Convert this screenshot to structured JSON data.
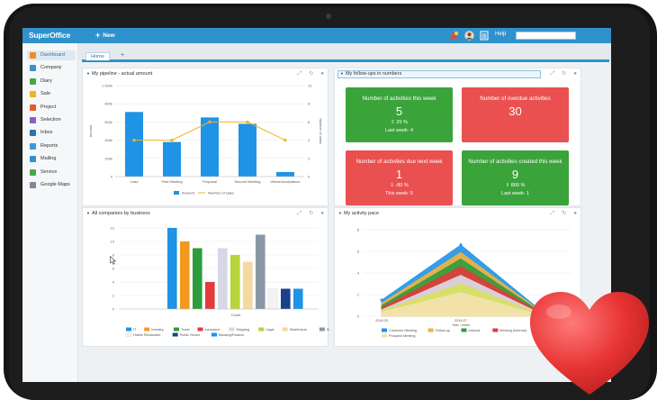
{
  "app": {
    "name": "SuperOffice",
    "new_label": "New",
    "help_label": "Help",
    "search_placeholder": ""
  },
  "sidebar": {
    "items": [
      {
        "label": "Dashboard",
        "color": "#f08a24",
        "active": true
      },
      {
        "label": "Company",
        "color": "#3a8fd0"
      },
      {
        "label": "Diary",
        "color": "#45a845"
      },
      {
        "label": "Sale",
        "color": "#f0b323"
      },
      {
        "label": "Project",
        "color": "#e85a2a"
      },
      {
        "label": "Selection",
        "color": "#8a5fc2"
      },
      {
        "label": "Inbox",
        "color": "#2f72a8"
      },
      {
        "label": "Reports",
        "color": "#3c9ad6"
      },
      {
        "label": "Mailing",
        "color": "#2f92cc"
      },
      {
        "label": "Service",
        "color": "#4aa84a"
      },
      {
        "label": "Google Maps",
        "color": "#7b8a96"
      }
    ]
  },
  "tabs": {
    "home_label": "Home",
    "add_label": "+"
  },
  "panels": {
    "pipeline": {
      "title": "My pipeline - actual amount"
    },
    "followups": {
      "title": "My follow-ups in numbers"
    },
    "companies": {
      "title": "All companies by business"
    },
    "activity": {
      "title": "My activity pace"
    }
  },
  "tiles": [
    {
      "title": "Number of activities this week",
      "value": "5",
      "change": "⇧ 25 %",
      "last": "Last week: 4",
      "color": "#3aa33a"
    },
    {
      "title": "Number of overdue activities",
      "value": "30",
      "change": "",
      "last": "",
      "color": "#e9504f"
    },
    {
      "title": "Number of activities due next week",
      "value": "1",
      "change": "⇩ -80 %",
      "last": "This week: 5",
      "color": "#e9504f"
    },
    {
      "title": "Number of activities created this week",
      "value": "9",
      "change": "⇧ 800 %",
      "last": "Last week: 1",
      "color": "#3aa33a"
    }
  ],
  "chart_data": [
    {
      "type": "bar",
      "title": "My pipeline - actual amount",
      "categories": [
        "Lead",
        "First Meeting",
        "Proposal",
        "Second Meeting",
        "Verbal Acceptance"
      ],
      "ylabel": "Amount",
      "y2label": "Number of sales",
      "ylim": [
        0,
        1000000
      ],
      "y2lim": [
        0,
        10
      ],
      "yticks": [
        "0",
        "200k",
        "400k",
        "600k",
        "800k",
        "1 000k"
      ],
      "y2ticks": [
        "0",
        "2",
        "4",
        "6",
        "8",
        "10"
      ],
      "series": [
        {
          "name": "Amount",
          "values": [
            710000,
            380000,
            650000,
            580000,
            50000
          ],
          "color": "#1f93e6",
          "kind": "bar",
          "axis": "left"
        },
        {
          "name": "Number of sales",
          "values": [
            4,
            4,
            6,
            6,
            4
          ],
          "color": "#f0b323",
          "kind": "line",
          "axis": "right"
        }
      ],
      "legend": "bottom"
    },
    {
      "type": "bar",
      "title": "All companies by business",
      "xlabel": "Count",
      "ylim": [
        0,
        12
      ],
      "yticks": [
        "0",
        "2",
        "4",
        "6",
        "8",
        "10",
        "12"
      ],
      "series": [
        {
          "name": "IT",
          "values": [
            12
          ],
          "color": "#1f93e6"
        },
        {
          "name": "Industry",
          "values": [
            10
          ],
          "color": "#f29a1f"
        },
        {
          "name": "Trade",
          "values": [
            9
          ],
          "color": "#2d9c3c"
        },
        {
          "name": "Insurance",
          "values": [
            4
          ],
          "color": "#e23b3b"
        },
        {
          "name": "Shipping",
          "values": [
            9
          ],
          "color": "#d7d7e6"
        },
        {
          "name": "Legal",
          "values": [
            8
          ],
          "color": "#b7d43a"
        },
        {
          "name": "Distributors",
          "values": [
            7
          ],
          "color": "#f4d9a0"
        },
        {
          "name": "Services",
          "values": [
            11
          ],
          "color": "#8a97a6"
        },
        {
          "name": "Hotels Restaurant",
          "values": [
            3
          ],
          "color": "#f3f3f3"
        },
        {
          "name": "Public Sector",
          "values": [
            3
          ],
          "color": "#1c3f8c"
        },
        {
          "name": "Banking/Finance",
          "values": [
            3
          ],
          "color": "#1f93e6"
        }
      ],
      "legend": "bottom"
    },
    {
      "type": "area",
      "title": "My activity pace",
      "x": [
        "2016.25",
        "2016.27",
        ""
      ],
      "xlabel": "Year / week",
      "ylim": [
        0,
        8
      ],
      "yticks": [
        "0",
        "2",
        "4",
        "6",
        "8"
      ],
      "series": [
        {
          "name": "Customer Meeting",
          "values": [
            1.5,
            6.6,
            0.8
          ],
          "color": "#1f93e6"
        },
        {
          "name": "Follow-up",
          "values": [
            1.2,
            5.9,
            0.7
          ],
          "color": "#f4b23c"
        },
        {
          "name": "Internal",
          "values": [
            1.0,
            5.3,
            0.6
          ],
          "color": "#2d9c3c"
        },
        {
          "name": "Meeting (Internal)",
          "values": [
            0.8,
            4.6,
            0.5
          ],
          "color": "#e23b3b"
        },
        {
          "name": "Phone-in",
          "values": [
            0.6,
            3.8,
            0.4
          ],
          "color": "#dcdcec"
        },
        {
          "name": "",
          "values": [
            0.5,
            3.0,
            0.3
          ],
          "color": "#d6e25a"
        },
        {
          "name": "Prospect Meeting",
          "values": [
            0.4,
            2.2,
            0.2
          ],
          "color": "#f4e2b0"
        }
      ],
      "legend": "bottom"
    }
  ]
}
